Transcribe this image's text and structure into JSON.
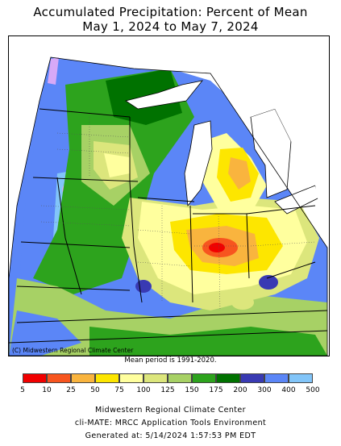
{
  "title": {
    "line1": "Accumulated Precipitation: Percent of Mean",
    "line2": "May 1, 2024 to May 7, 2024"
  },
  "map": {
    "copyright": "(C) Midwestern Regional Climate Center",
    "mean_period_note": "Mean period is 1991-2020."
  },
  "legend": {
    "labels": [
      "5",
      "10",
      "25",
      "50",
      "75",
      "100",
      "125",
      "150",
      "175",
      "200",
      "300",
      "400",
      "500"
    ],
    "colors": [
      "#f10000",
      "#f7551f",
      "#f9b43e",
      "#fde600",
      "#ffff9e",
      "#dce67c",
      "#a7d165",
      "#2da31d",
      "#007200",
      "#393ab3",
      "#5b86f7",
      "#82c5f9",
      "#d7a9f7"
    ]
  },
  "footer": {
    "line1": "Midwestern Regional Climate Center",
    "line2": "cli-MATE: MRCC Application Tools Environment",
    "line3": "Generated at: 5/14/2024 1:57:53 PM EDT"
  }
}
